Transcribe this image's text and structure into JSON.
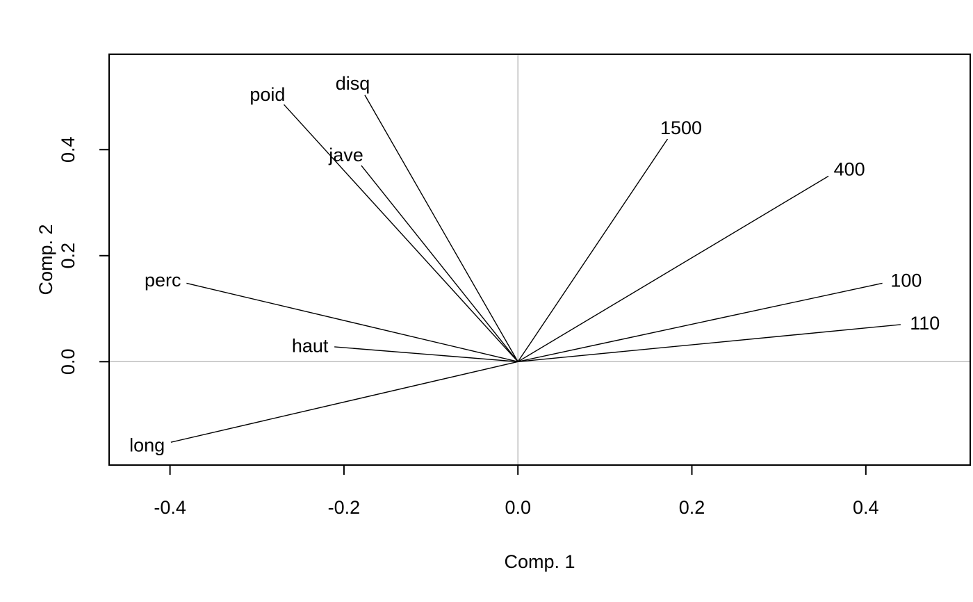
{
  "chart_data": {
    "type": "scatter",
    "subtype": "loadings-vector-plot",
    "title": "",
    "xlabel": "Comp. 1",
    "ylabel": "Comp. 2",
    "xlim": [
      -0.47,
      0.52
    ],
    "ylim": [
      -0.195,
      0.58
    ],
    "x_ticks": [
      -0.4,
      -0.2,
      0.0,
      0.2,
      0.4
    ],
    "y_ticks": [
      0.0,
      0.2,
      0.4
    ],
    "x_tick_labels": [
      "-0.4",
      "-0.2",
      "0.0",
      "0.2",
      "0.4"
    ],
    "y_tick_labels": [
      "0.0",
      "0.2",
      "0.4"
    ],
    "reference_lines": {
      "x": 0,
      "y": 0,
      "color": "#bebebe"
    },
    "grid": false,
    "legend": "none",
    "line_color": "#000000",
    "vectors": [
      {
        "name": "disq",
        "x": -0.176,
        "y": 0.503
      },
      {
        "name": "poid",
        "x": -0.269,
        "y": 0.485
      },
      {
        "name": "jave",
        "x": -0.18,
        "y": 0.37
      },
      {
        "name": "1500",
        "x": 0.172,
        "y": 0.42
      },
      {
        "name": "400",
        "x": 0.357,
        "y": 0.35
      },
      {
        "name": "perc",
        "x": -0.381,
        "y": 0.148
      },
      {
        "name": "100",
        "x": 0.419,
        "y": 0.148
      },
      {
        "name": "haut",
        "x": -0.211,
        "y": 0.028
      },
      {
        "name": "110",
        "x": 0.44,
        "y": 0.07
      },
      {
        "name": "long",
        "x": -0.399,
        "y": -0.152
      }
    ]
  }
}
